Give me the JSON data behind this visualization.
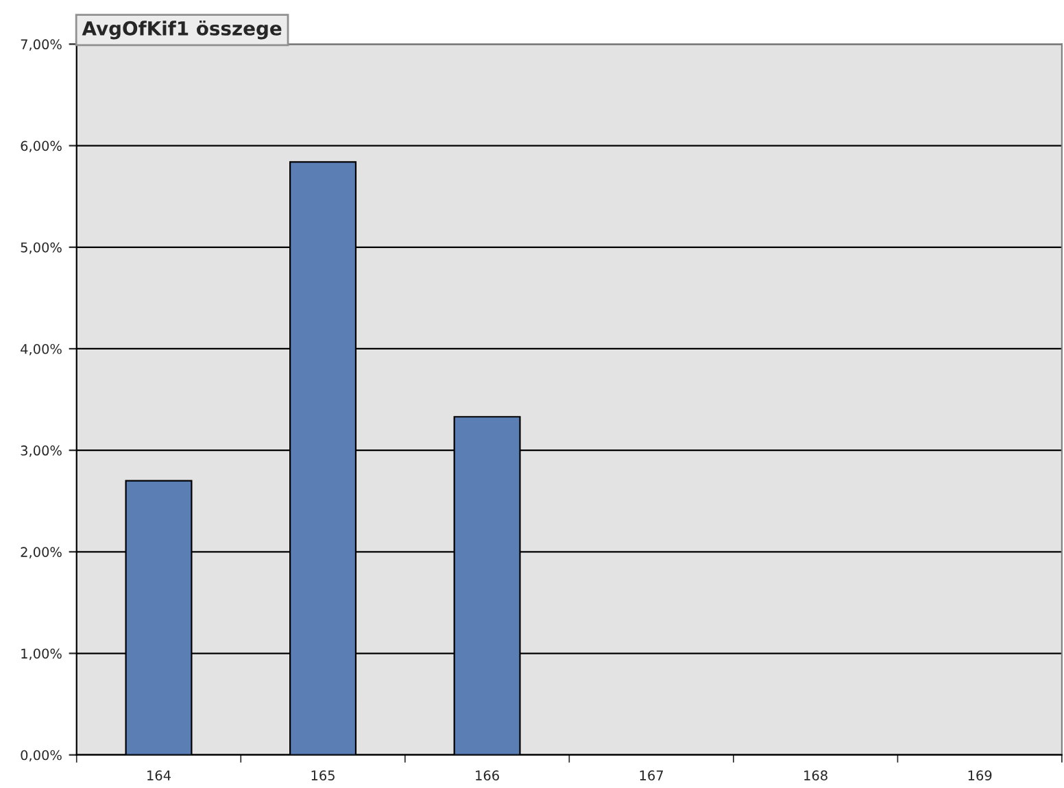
{
  "chart_data": {
    "type": "bar",
    "title": "AvgOfKif1 összege",
    "categories": [
      "164",
      "165",
      "166",
      "167",
      "168",
      "169"
    ],
    "series": [
      {
        "color": "#5b7fb4",
        "values": [
          2.7,
          5.84,
          3.33,
          null,
          null,
          null
        ]
      }
    ],
    "ylim": [
      0,
      7
    ],
    "yticks": [
      {
        "value": 0,
        "label": "0,00%"
      },
      {
        "value": 1,
        "label": "1,00%"
      },
      {
        "value": 2,
        "label": "2,00%"
      },
      {
        "value": 3,
        "label": "3,00%"
      },
      {
        "value": 4,
        "label": "4,00%"
      },
      {
        "value": 5,
        "label": "5,00%"
      },
      {
        "value": 6,
        "label": "6,00%"
      },
      {
        "value": 7,
        "label": "7,00%"
      }
    ],
    "grid": "y",
    "legend": false
  }
}
